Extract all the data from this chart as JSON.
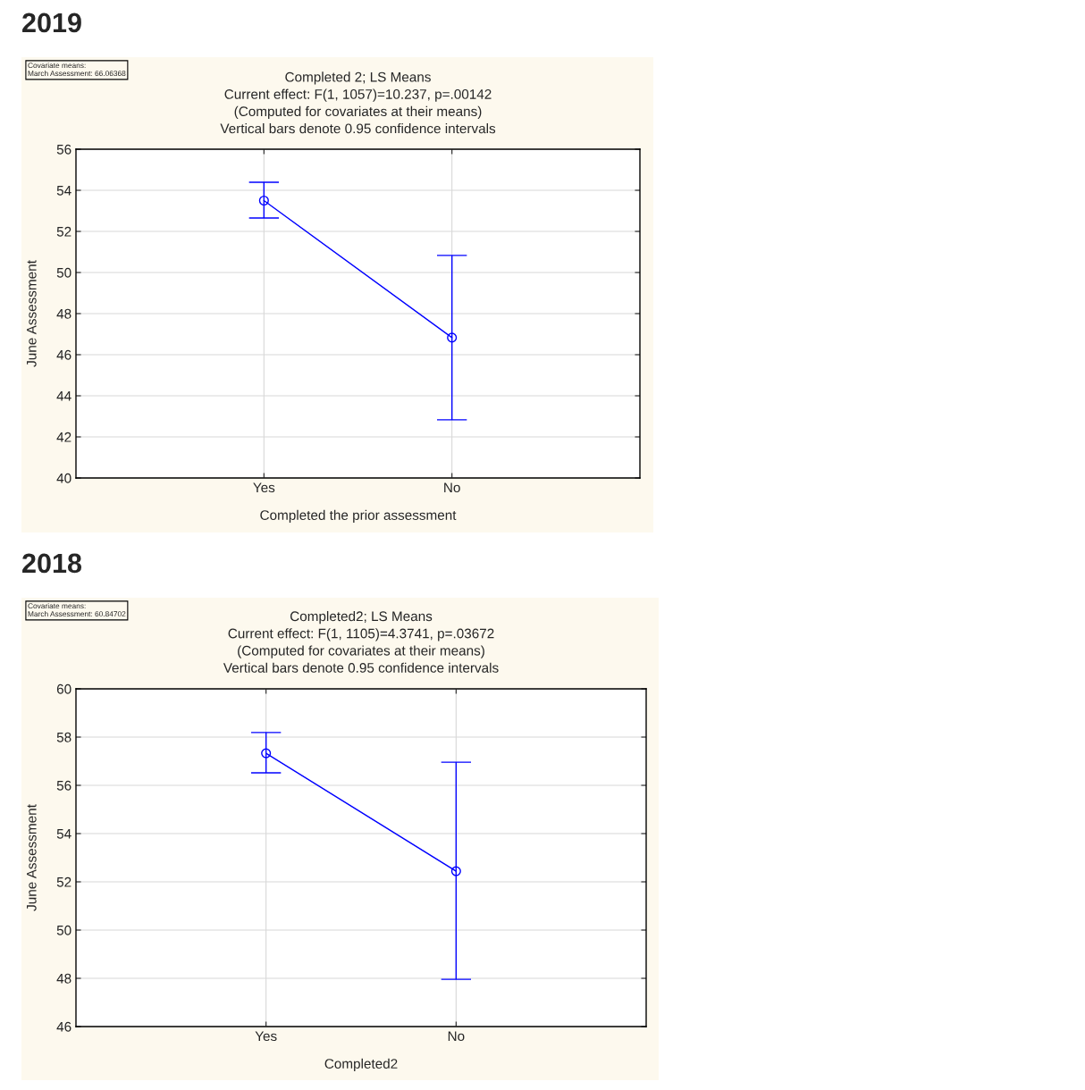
{
  "chart_data": [
    {
      "type": "line",
      "title": "2019",
      "subtitle": "Completed 2; LS Means\nCurrent effect: F(1, 1057)=10.237, p=.00142\n(Computed for covariates at their means)\nVertical bars denote 0.95 confidence intervals",
      "xlabel": "Completed the prior assessment",
      "ylabel": "June Assessment",
      "annotations": [
        "Covariate means:\nMarch Assessment: 66.06368"
      ],
      "categories": [
        "Yes",
        "No"
      ],
      "series": [
        {
          "color": "#0000ff",
          "values": [
            53.5,
            46.83
          ],
          "errors": [
            [
              52.65,
              54.39
            ],
            [
              42.83,
              50.83
            ]
          ]
        }
      ],
      "ylim": [
        40,
        56
      ],
      "yticks": [
        40,
        42,
        44,
        46,
        48,
        50,
        52,
        54,
        56
      ],
      "grid": true,
      "marker": "circle",
      "line_style": "solid"
    },
    {
      "type": "line",
      "title": "2018",
      "subtitle": "Completed2; LS Means\nCurrent effect: F(1, 1105)=4.3741, p=.03672\n(Computed for covariates at their means)\nVertical bars denote 0.95 confidence intervals",
      "xlabel": "Completed2",
      "ylabel": "June Assessment",
      "annotations": [
        "Covariate means:\nMarch Assessment: 60.84702"
      ],
      "categories": [
        "Yes",
        "No"
      ],
      "series": [
        {
          "color": "#0000ff",
          "values": [
            57.33,
            52.44
          ],
          "errors": [
            [
              56.52,
              58.19
            ],
            [
              47.96,
              56.96
            ]
          ]
        }
      ],
      "ylim": [
        46,
        60
      ],
      "yticks": [
        46,
        48,
        50,
        52,
        54,
        56,
        58,
        60
      ],
      "grid": true,
      "marker": "circle",
      "line_style": "solid"
    }
  ]
}
